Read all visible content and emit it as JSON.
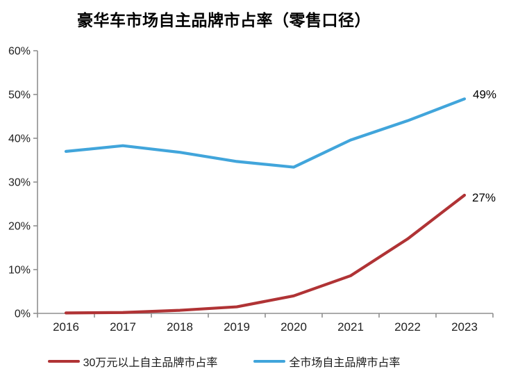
{
  "page": {
    "background": "#ffffff"
  },
  "chart_data": {
    "type": "line",
    "title": "豪华车市场自主品牌市占率（零售口径）",
    "x": [
      "2016",
      "2017",
      "2018",
      "2019",
      "2020",
      "2021",
      "2022",
      "2023"
    ],
    "series": [
      {
        "name": "30万元以上自主品牌市占率",
        "color": "#b03335",
        "values": [
          0.1,
          0.2,
          0.7,
          1.5,
          4.0,
          8.6,
          17.0,
          27.0
        ],
        "end_label": "27%",
        "end_label_dx": 11,
        "end_label_dy": 9
      },
      {
        "name": "全市场自主品牌市占率",
        "color": "#41a5db",
        "values": [
          37.0,
          38.3,
          36.8,
          34.7,
          33.4,
          39.6,
          44.0,
          49.0
        ],
        "end_label": "49%",
        "end_label_dx": 12,
        "end_label_dy": -1
      }
    ],
    "ylim": [
      0,
      60
    ],
    "ytick_step": 10,
    "yticks": [
      "0%",
      "10%",
      "20%",
      "30%",
      "40%",
      "50%",
      "60%"
    ],
    "grid": false,
    "legend_position": "bottom",
    "axis_color": "#8f8f8f",
    "tick_label_color": "#1f1f1f",
    "data_label_color": "#000000"
  }
}
